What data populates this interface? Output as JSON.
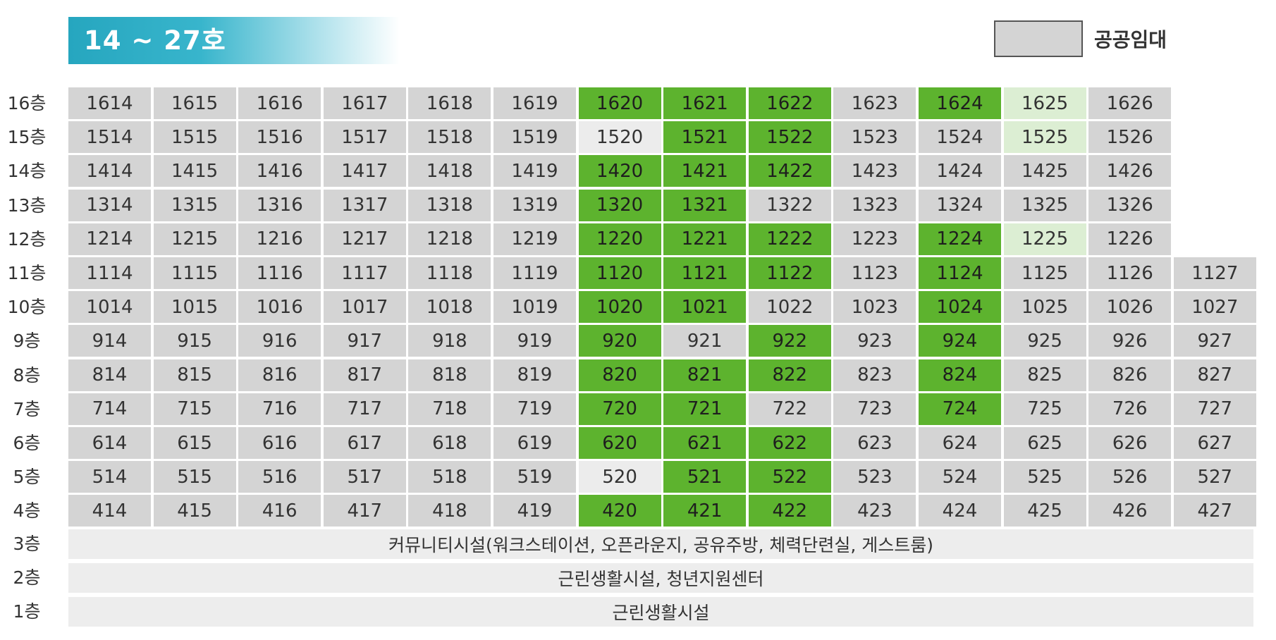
{
  "header": {
    "title": "14 ~ 27호"
  },
  "legend": {
    "label": "공공임대",
    "swatch_color": "#d4d4d4"
  },
  "colors": {
    "gray": "#d4d4d4",
    "green": "#5db32e",
    "light_green": "#dceed3",
    "light_gray": "#ececec"
  },
  "floors": [
    {
      "label": "16층",
      "units": [
        {
          "n": "1614",
          "s": "gray"
        },
        {
          "n": "1615",
          "s": "gray"
        },
        {
          "n": "1616",
          "s": "gray"
        },
        {
          "n": "1617",
          "s": "gray"
        },
        {
          "n": "1618",
          "s": "gray"
        },
        {
          "n": "1619",
          "s": "gray"
        },
        {
          "n": "1620",
          "s": "green"
        },
        {
          "n": "1621",
          "s": "green"
        },
        {
          "n": "1622",
          "s": "green"
        },
        {
          "n": "1623",
          "s": "gray"
        },
        {
          "n": "1624",
          "s": "green"
        },
        {
          "n": "1625",
          "s": "light"
        },
        {
          "n": "1626",
          "s": "gray"
        }
      ]
    },
    {
      "label": "15층",
      "units": [
        {
          "n": "1514",
          "s": "gray"
        },
        {
          "n": "1515",
          "s": "gray"
        },
        {
          "n": "1516",
          "s": "gray"
        },
        {
          "n": "1517",
          "s": "gray"
        },
        {
          "n": "1518",
          "s": "gray"
        },
        {
          "n": "1519",
          "s": "gray"
        },
        {
          "n": "1520",
          "s": "light2"
        },
        {
          "n": "1521",
          "s": "green"
        },
        {
          "n": "1522",
          "s": "green"
        },
        {
          "n": "1523",
          "s": "gray"
        },
        {
          "n": "1524",
          "s": "gray"
        },
        {
          "n": "1525",
          "s": "light"
        },
        {
          "n": "1526",
          "s": "gray"
        }
      ]
    },
    {
      "label": "14층",
      "units": [
        {
          "n": "1414",
          "s": "gray"
        },
        {
          "n": "1415",
          "s": "gray"
        },
        {
          "n": "1416",
          "s": "gray"
        },
        {
          "n": "1417",
          "s": "gray"
        },
        {
          "n": "1418",
          "s": "gray"
        },
        {
          "n": "1419",
          "s": "gray"
        },
        {
          "n": "1420",
          "s": "green"
        },
        {
          "n": "1421",
          "s": "green"
        },
        {
          "n": "1422",
          "s": "green"
        },
        {
          "n": "1423",
          "s": "gray"
        },
        {
          "n": "1424",
          "s": "gray"
        },
        {
          "n": "1425",
          "s": "gray"
        },
        {
          "n": "1426",
          "s": "gray"
        }
      ]
    },
    {
      "label": "13층",
      "units": [
        {
          "n": "1314",
          "s": "gray"
        },
        {
          "n": "1315",
          "s": "gray"
        },
        {
          "n": "1316",
          "s": "gray"
        },
        {
          "n": "1317",
          "s": "gray"
        },
        {
          "n": "1318",
          "s": "gray"
        },
        {
          "n": "1319",
          "s": "gray"
        },
        {
          "n": "1320",
          "s": "green"
        },
        {
          "n": "1321",
          "s": "green"
        },
        {
          "n": "1322",
          "s": "gray"
        },
        {
          "n": "1323",
          "s": "gray"
        },
        {
          "n": "1324",
          "s": "gray"
        },
        {
          "n": "1325",
          "s": "gray"
        },
        {
          "n": "1326",
          "s": "gray"
        }
      ]
    },
    {
      "label": "12층",
      "units": [
        {
          "n": "1214",
          "s": "gray"
        },
        {
          "n": "1215",
          "s": "gray"
        },
        {
          "n": "1216",
          "s": "gray"
        },
        {
          "n": "1217",
          "s": "gray"
        },
        {
          "n": "1218",
          "s": "gray"
        },
        {
          "n": "1219",
          "s": "gray"
        },
        {
          "n": "1220",
          "s": "green"
        },
        {
          "n": "1221",
          "s": "green"
        },
        {
          "n": "1222",
          "s": "green"
        },
        {
          "n": "1223",
          "s": "gray"
        },
        {
          "n": "1224",
          "s": "green"
        },
        {
          "n": "1225",
          "s": "light"
        },
        {
          "n": "1226",
          "s": "gray"
        }
      ]
    },
    {
      "label": "11층",
      "units": [
        {
          "n": "1114",
          "s": "gray"
        },
        {
          "n": "1115",
          "s": "gray"
        },
        {
          "n": "1116",
          "s": "gray"
        },
        {
          "n": "1117",
          "s": "gray"
        },
        {
          "n": "1118",
          "s": "gray"
        },
        {
          "n": "1119",
          "s": "gray"
        },
        {
          "n": "1120",
          "s": "green"
        },
        {
          "n": "1121",
          "s": "green"
        },
        {
          "n": "1122",
          "s": "green"
        },
        {
          "n": "1123",
          "s": "gray"
        },
        {
          "n": "1124",
          "s": "green"
        },
        {
          "n": "1125",
          "s": "gray"
        },
        {
          "n": "1126",
          "s": "gray"
        },
        {
          "n": "1127",
          "s": "gray"
        }
      ]
    },
    {
      "label": "10층",
      "units": [
        {
          "n": "1014",
          "s": "gray"
        },
        {
          "n": "1015",
          "s": "gray"
        },
        {
          "n": "1016",
          "s": "gray"
        },
        {
          "n": "1017",
          "s": "gray"
        },
        {
          "n": "1018",
          "s": "gray"
        },
        {
          "n": "1019",
          "s": "gray"
        },
        {
          "n": "1020",
          "s": "green"
        },
        {
          "n": "1021",
          "s": "green"
        },
        {
          "n": "1022",
          "s": "gray"
        },
        {
          "n": "1023",
          "s": "gray"
        },
        {
          "n": "1024",
          "s": "green"
        },
        {
          "n": "1025",
          "s": "gray"
        },
        {
          "n": "1026",
          "s": "gray"
        },
        {
          "n": "1027",
          "s": "gray"
        }
      ]
    },
    {
      "label": "9층",
      "units": [
        {
          "n": "914",
          "s": "gray"
        },
        {
          "n": "915",
          "s": "gray"
        },
        {
          "n": "916",
          "s": "gray"
        },
        {
          "n": "917",
          "s": "gray"
        },
        {
          "n": "918",
          "s": "gray"
        },
        {
          "n": "919",
          "s": "gray"
        },
        {
          "n": "920",
          "s": "green"
        },
        {
          "n": "921",
          "s": "gray"
        },
        {
          "n": "922",
          "s": "green"
        },
        {
          "n": "923",
          "s": "gray"
        },
        {
          "n": "924",
          "s": "green"
        },
        {
          "n": "925",
          "s": "gray"
        },
        {
          "n": "926",
          "s": "gray"
        },
        {
          "n": "927",
          "s": "gray"
        }
      ]
    },
    {
      "label": "8층",
      "units": [
        {
          "n": "814",
          "s": "gray"
        },
        {
          "n": "815",
          "s": "gray"
        },
        {
          "n": "816",
          "s": "gray"
        },
        {
          "n": "817",
          "s": "gray"
        },
        {
          "n": "818",
          "s": "gray"
        },
        {
          "n": "819",
          "s": "gray"
        },
        {
          "n": "820",
          "s": "green"
        },
        {
          "n": "821",
          "s": "green"
        },
        {
          "n": "822",
          "s": "green"
        },
        {
          "n": "823",
          "s": "gray"
        },
        {
          "n": "824",
          "s": "green"
        },
        {
          "n": "825",
          "s": "gray"
        },
        {
          "n": "826",
          "s": "gray"
        },
        {
          "n": "827",
          "s": "gray"
        }
      ]
    },
    {
      "label": "7층",
      "units": [
        {
          "n": "714",
          "s": "gray"
        },
        {
          "n": "715",
          "s": "gray"
        },
        {
          "n": "716",
          "s": "gray"
        },
        {
          "n": "717",
          "s": "gray"
        },
        {
          "n": "718",
          "s": "gray"
        },
        {
          "n": "719",
          "s": "gray"
        },
        {
          "n": "720",
          "s": "green"
        },
        {
          "n": "721",
          "s": "green"
        },
        {
          "n": "722",
          "s": "gray"
        },
        {
          "n": "723",
          "s": "gray"
        },
        {
          "n": "724",
          "s": "green"
        },
        {
          "n": "725",
          "s": "gray"
        },
        {
          "n": "726",
          "s": "gray"
        },
        {
          "n": "727",
          "s": "gray"
        }
      ]
    },
    {
      "label": "6층",
      "units": [
        {
          "n": "614",
          "s": "gray"
        },
        {
          "n": "615",
          "s": "gray"
        },
        {
          "n": "616",
          "s": "gray"
        },
        {
          "n": "617",
          "s": "gray"
        },
        {
          "n": "618",
          "s": "gray"
        },
        {
          "n": "619",
          "s": "gray"
        },
        {
          "n": "620",
          "s": "green"
        },
        {
          "n": "621",
          "s": "green"
        },
        {
          "n": "622",
          "s": "green"
        },
        {
          "n": "623",
          "s": "gray"
        },
        {
          "n": "624",
          "s": "gray"
        },
        {
          "n": "625",
          "s": "gray"
        },
        {
          "n": "626",
          "s": "gray"
        },
        {
          "n": "627",
          "s": "gray"
        }
      ]
    },
    {
      "label": "5층",
      "units": [
        {
          "n": "514",
          "s": "gray"
        },
        {
          "n": "515",
          "s": "gray"
        },
        {
          "n": "516",
          "s": "gray"
        },
        {
          "n": "517",
          "s": "gray"
        },
        {
          "n": "518",
          "s": "gray"
        },
        {
          "n": "519",
          "s": "gray"
        },
        {
          "n": "520",
          "s": "light2"
        },
        {
          "n": "521",
          "s": "green"
        },
        {
          "n": "522",
          "s": "green"
        },
        {
          "n": "523",
          "s": "gray"
        },
        {
          "n": "524",
          "s": "gray"
        },
        {
          "n": "525",
          "s": "gray"
        },
        {
          "n": "526",
          "s": "gray"
        },
        {
          "n": "527",
          "s": "gray"
        }
      ]
    },
    {
      "label": "4층",
      "units": [
        {
          "n": "414",
          "s": "gray"
        },
        {
          "n": "415",
          "s": "gray"
        },
        {
          "n": "416",
          "s": "gray"
        },
        {
          "n": "417",
          "s": "gray"
        },
        {
          "n": "418",
          "s": "gray"
        },
        {
          "n": "419",
          "s": "gray"
        },
        {
          "n": "420",
          "s": "green"
        },
        {
          "n": "421",
          "s": "green"
        },
        {
          "n": "422",
          "s": "green"
        },
        {
          "n": "423",
          "s": "gray"
        },
        {
          "n": "424",
          "s": "gray"
        },
        {
          "n": "425",
          "s": "gray"
        },
        {
          "n": "426",
          "s": "gray"
        },
        {
          "n": "427",
          "s": "gray"
        }
      ]
    }
  ],
  "facilities": [
    {
      "label": "3층",
      "text": "커뮤니티시설(워크스테이션, 오픈라운지, 공유주방, 체력단련실, 게스트룸)"
    },
    {
      "label": "2층",
      "text": "근린생활시설, 청년지원센터"
    },
    {
      "label": "1층",
      "text": "근린생활시설"
    }
  ]
}
